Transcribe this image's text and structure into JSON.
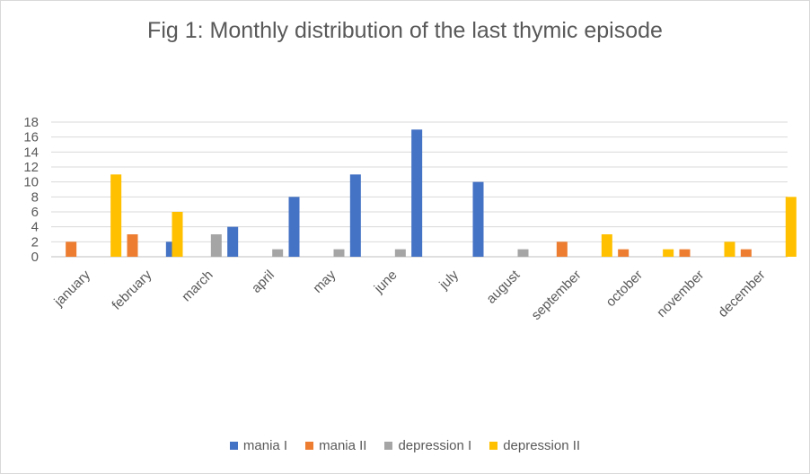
{
  "chart_data": {
    "type": "bar",
    "title": "Fig 1: Monthly distribution of the last thymic episode",
    "xlabel": "",
    "ylabel": "",
    "ylim": [
      0,
      18
    ],
    "yticks": [
      0,
      2,
      4,
      6,
      8,
      10,
      12,
      14,
      16,
      18
    ],
    "grid": true,
    "legend_position": "bottom",
    "categories": [
      "january",
      "february",
      "march",
      "april",
      "may",
      "june",
      "july",
      "august",
      "september",
      "october",
      "november",
      "december"
    ],
    "series": [
      {
        "name": "mania I",
        "color": "#4472c4",
        "values": [
          0,
          0,
          2,
          4,
          8,
          11,
          17,
          10,
          0,
          0,
          0,
          0
        ]
      },
      {
        "name": "mania II",
        "color": "#ed7d31",
        "values": [
          2,
          3,
          0,
          0,
          0,
          0,
          0,
          0,
          2,
          1,
          1,
          1
        ]
      },
      {
        "name": "depression I",
        "color": "#a5a5a5",
        "values": [
          0,
          0,
          3,
          1,
          1,
          1,
          0,
          1,
          0,
          0,
          0,
          0
        ]
      },
      {
        "name": "depression II",
        "color": "#ffc000",
        "values": [
          11,
          6,
          0,
          0,
          0,
          0,
          0,
          0,
          3,
          1,
          2,
          8
        ]
      }
    ]
  }
}
